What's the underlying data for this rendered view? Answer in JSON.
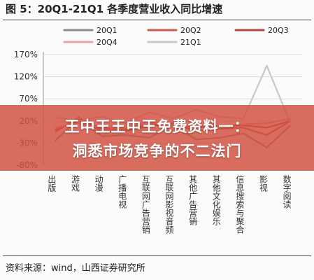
{
  "figure": {
    "title": "图 5：20Q1-21Q1 各季度营业收入同比增速",
    "source": "资料来源：wind，山西证券研究所"
  },
  "banner": {
    "line1": "王中王王中王免费资料一：",
    "line2": "洞悉市场竞争的不二法门"
  },
  "colors": {
    "20Q1": "#8c8c8c",
    "20Q2": "#c85a4e",
    "20Q3": "#b34a40",
    "20Q4": "#e6a49c",
    "21Q1": "#c8c8c8"
  },
  "chart_data": {
    "type": "line",
    "title": "图 5：20Q1-21Q1 各季度营业收入同比增速",
    "xlabel": "",
    "ylabel": "",
    "ylim": [
      -80,
      170
    ],
    "yticks": [
      "170%",
      "120%",
      "70%",
      "20%",
      "-30%",
      "-80%"
    ],
    "legend_position": "top",
    "categories": [
      "出版",
      "游戏",
      "动漫",
      "广播电视",
      "互联网广告营销",
      "互联网影视音频",
      "其他广告营销",
      "其他文化娱乐",
      "信息搜索与聚合",
      "影视",
      "数字阅读"
    ],
    "series": [
      {
        "name": "20Q1",
        "values": [
          -25,
          25,
          -15,
          -12,
          -18,
          10,
          -22,
          -18,
          -8,
          -40,
          10
        ]
      },
      {
        "name": "20Q2",
        "values": [
          -5,
          28,
          -5,
          -3,
          8,
          15,
          -3,
          2,
          5,
          -12,
          20
        ]
      },
      {
        "name": "20Q3",
        "values": [
          0,
          20,
          2,
          0,
          12,
          12,
          5,
          8,
          10,
          5,
          20
        ]
      },
      {
        "name": "20Q4",
        "values": [
          5,
          15,
          5,
          3,
          18,
          10,
          8,
          10,
          12,
          15,
          25
        ]
      },
      {
        "name": "21Q1",
        "values": [
          28,
          20,
          30,
          15,
          40,
          25,
          45,
          30,
          25,
          145,
          15
        ]
      }
    ]
  }
}
